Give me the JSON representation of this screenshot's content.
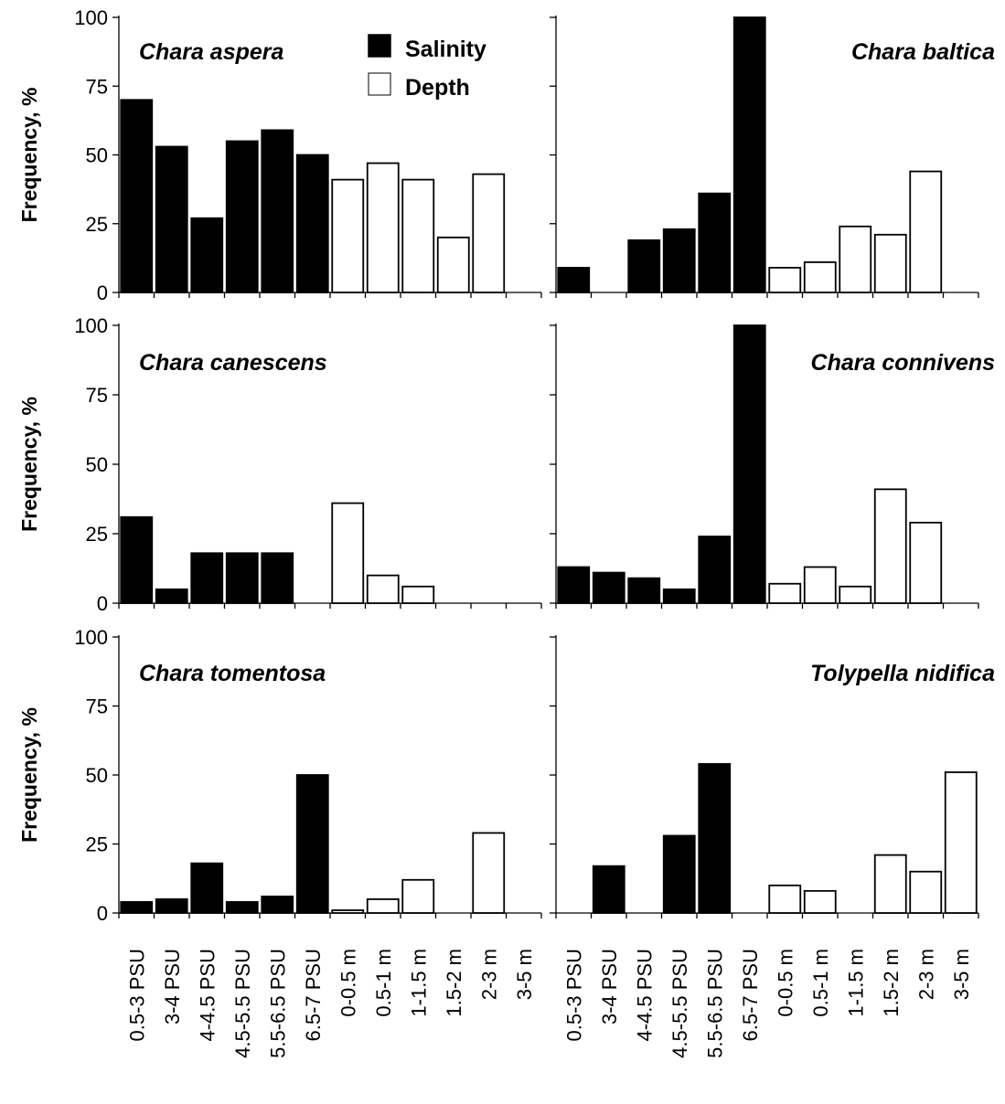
{
  "legend": {
    "position": "top-center",
    "items": [
      {
        "label": "Salinity",
        "color": "#000000"
      },
      {
        "label": "Depth",
        "color": "#ffffff"
      }
    ]
  },
  "y_axis_label": "Frequency, %",
  "y_ticks": [
    0,
    25,
    50,
    75,
    100
  ],
  "categories": [
    "0.5-3 PSU",
    "3-4 PSU",
    "4-4.5 PSU",
    "4.5-5.5 PSU",
    "5.5-6.5 PSU",
    "6.5-7 PSU",
    "0-0.5 m",
    "0.5-1 m",
    "1-1.5 m",
    "1.5-2 m",
    "2-3 m",
    "3-5 m"
  ],
  "chart_data": [
    {
      "type": "bar",
      "title": "Chara aspera",
      "ylabel": "Frequency, %",
      "ylim": [
        0,
        100
      ],
      "categories": [
        "0.5-3 PSU",
        "3-4 PSU",
        "4-4.5 PSU",
        "4.5-5.5 PSU",
        "5.5-6.5 PSU",
        "6.5-7 PSU",
        "0-0.5 m",
        "0.5-1 m",
        "1-1.5 m",
        "1.5-2 m",
        "2-3 m",
        "3-5 m"
      ],
      "series": [
        {
          "name": "Salinity",
          "values": [
            70,
            53,
            27,
            55,
            59,
            50,
            null,
            null,
            null,
            null,
            null,
            null
          ]
        },
        {
          "name": "Depth",
          "values": [
            null,
            null,
            null,
            null,
            null,
            null,
            41,
            47,
            41,
            20,
            43,
            0
          ]
        }
      ]
    },
    {
      "type": "bar",
      "title": "Chara baltica",
      "ylabel": "",
      "ylim": [
        0,
        100
      ],
      "categories": [
        "0.5-3 PSU",
        "3-4 PSU",
        "4-4.5 PSU",
        "4.5-5.5 PSU",
        "5.5-6.5 PSU",
        "6.5-7 PSU",
        "0-0.5 m",
        "0.5-1 m",
        "1-1.5 m",
        "1.5-2 m",
        "2-3 m",
        "3-5 m"
      ],
      "series": [
        {
          "name": "Salinity",
          "values": [
            9,
            0,
            19,
            23,
            36,
            100,
            null,
            null,
            null,
            null,
            null,
            null
          ]
        },
        {
          "name": "Depth",
          "values": [
            null,
            null,
            null,
            null,
            null,
            null,
            9,
            11,
            24,
            21,
            44,
            0
          ]
        }
      ]
    },
    {
      "type": "bar",
      "title": "Chara canescens",
      "ylabel": "Frequency, %",
      "ylim": [
        0,
        100
      ],
      "categories": [
        "0.5-3 PSU",
        "3-4 PSU",
        "4-4.5 PSU",
        "4.5-5.5 PSU",
        "5.5-6.5 PSU",
        "6.5-7 PSU",
        "0-0.5 m",
        "0.5-1 m",
        "1-1.5 m",
        "1.5-2 m",
        "2-3 m",
        "3-5 m"
      ],
      "series": [
        {
          "name": "Salinity",
          "values": [
            31,
            5,
            18,
            18,
            18,
            0,
            null,
            null,
            null,
            null,
            null,
            null
          ]
        },
        {
          "name": "Depth",
          "values": [
            null,
            null,
            null,
            null,
            null,
            null,
            36,
            10,
            6,
            0,
            0,
            0
          ]
        }
      ]
    },
    {
      "type": "bar",
      "title": "Chara connivens",
      "ylabel": "",
      "ylim": [
        0,
        100
      ],
      "categories": [
        "0.5-3 PSU",
        "3-4 PSU",
        "4-4.5 PSU",
        "4.5-5.5 PSU",
        "5.5-6.5 PSU",
        "6.5-7 PSU",
        "0-0.5 m",
        "0.5-1 m",
        "1-1.5 m",
        "1.5-2 m",
        "2-3 m",
        "3-5 m"
      ],
      "series": [
        {
          "name": "Salinity",
          "values": [
            13,
            11,
            9,
            5,
            24,
            100,
            null,
            null,
            null,
            null,
            null,
            null
          ]
        },
        {
          "name": "Depth",
          "values": [
            null,
            null,
            null,
            null,
            null,
            null,
            7,
            13,
            6,
            41,
            29,
            0
          ]
        }
      ]
    },
    {
      "type": "bar",
      "title": "Chara tomentosa",
      "ylabel": "Frequency, %",
      "ylim": [
        0,
        100
      ],
      "categories": [
        "0.5-3 PSU",
        "3-4 PSU",
        "4-4.5 PSU",
        "4.5-5.5 PSU",
        "5.5-6.5 PSU",
        "6.5-7 PSU",
        "0-0.5 m",
        "0.5-1 m",
        "1-1.5 m",
        "1.5-2 m",
        "2-3 m",
        "3-5 m"
      ],
      "series": [
        {
          "name": "Salinity",
          "values": [
            4,
            5,
            18,
            4,
            6,
            50,
            null,
            null,
            null,
            null,
            null,
            null
          ]
        },
        {
          "name": "Depth",
          "values": [
            null,
            null,
            null,
            null,
            null,
            null,
            1,
            5,
            12,
            0,
            29,
            0
          ]
        }
      ]
    },
    {
      "type": "bar",
      "title": "Tolypella nidifica",
      "ylabel": "",
      "ylim": [
        0,
        100
      ],
      "categories": [
        "0.5-3 PSU",
        "3-4 PSU",
        "4-4.5 PSU",
        "4.5-5.5 PSU",
        "5.5-6.5 PSU",
        "6.5-7 PSU",
        "0-0.5 m",
        "0.5-1 m",
        "1-1.5 m",
        "1.5-2 m",
        "2-3 m",
        "3-5 m"
      ],
      "series": [
        {
          "name": "Salinity",
          "values": [
            0,
            17,
            0,
            28,
            54,
            0,
            null,
            null,
            null,
            null,
            null,
            null
          ]
        },
        {
          "name": "Depth",
          "values": [
            null,
            null,
            null,
            null,
            null,
            null,
            10,
            8,
            0,
            21,
            15,
            51
          ]
        }
      ]
    }
  ]
}
